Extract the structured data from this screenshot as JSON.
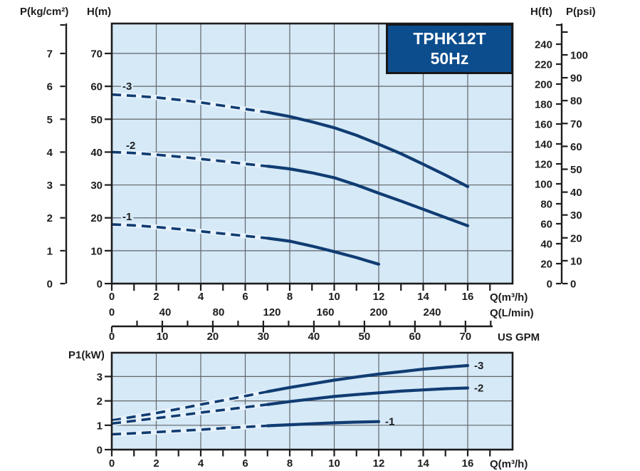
{
  "title_box": {
    "model": "TPHK12T",
    "frequency": "50Hz"
  },
  "colors": {
    "plot_bg": "#d5e9f7",
    "grid": "#63666a",
    "curve": "#103c72",
    "halo": "#e7f2fb",
    "axis": "#1d1d1f",
    "text": "#1d1d1f",
    "title_bg": "#0c4d8d",
    "title_text": "#ffffff"
  },
  "chart_data": [
    {
      "id": "head_chart",
      "type": "line",
      "title": "TPHK12T 50Hz",
      "xlabel": "Q(m³/h)",
      "ylabel": "H(m)",
      "xlim": [
        0,
        18
      ],
      "ylim": [
        0,
        79
      ],
      "grid": true,
      "legend_position": "on-curve",
      "x_major_ticks": [
        0,
        2,
        4,
        6,
        8,
        10,
        12,
        14,
        16
      ],
      "x_minor_tick_step": 1,
      "y_ticks": [
        0,
        10,
        20,
        30,
        40,
        50,
        60,
        70
      ],
      "left_axis_pressure_kgcm2": {
        "label": "P(kg/cm²)",
        "ticks": [
          0,
          1,
          2,
          3,
          4,
          5,
          6,
          7
        ]
      },
      "right_axis_head_ft": {
        "label": "H(ft)",
        "ticks": [
          0,
          20,
          40,
          60,
          80,
          100,
          120,
          140,
          160,
          180,
          200,
          220,
          240
        ]
      },
      "right_axis_pressure_psi": {
        "label": "P(psi)",
        "ticks": [
          0,
          10,
          20,
          30,
          40,
          50,
          60,
          70,
          80,
          90,
          100
        ]
      },
      "x_scale_lmin": {
        "label": "Q(L/min)",
        "ticks": [
          0,
          40,
          80,
          120,
          160,
          200,
          240
        ]
      },
      "x_scale_usgpm": {
        "label": "US GPM",
        "ticks": [
          0,
          10,
          20,
          30,
          40,
          50,
          60,
          70
        ],
        "minor_step": 5
      },
      "series": [
        {
          "name": "-3",
          "style": "dashed-then-solid",
          "dashed_until_x": 7,
          "points": [
            [
              0,
              57.5
            ],
            [
              1,
              57.1
            ],
            [
              2,
              56.6
            ],
            [
              3,
              55.9
            ],
            [
              4,
              55.1
            ],
            [
              5,
              54.1
            ],
            [
              6,
              53.1
            ],
            [
              7,
              52.1
            ],
            [
              8,
              50.8
            ],
            [
              9,
              49.2
            ],
            [
              10,
              47.4
            ],
            [
              11,
              45.1
            ],
            [
              12,
              42.4
            ],
            [
              13,
              39.5
            ],
            [
              14,
              36.3
            ],
            [
              15,
              33.0
            ],
            [
              16,
              29.5
            ]
          ]
        },
        {
          "name": "-2",
          "style": "dashed-then-solid",
          "dashed_until_x": 7,
          "points": [
            [
              0,
              40.0
            ],
            [
              1,
              39.7
            ],
            [
              2,
              39.2
            ],
            [
              3,
              38.6
            ],
            [
              4,
              37.9
            ],
            [
              5,
              37.2
            ],
            [
              6,
              36.4
            ],
            [
              7,
              35.7
            ],
            [
              8,
              34.9
            ],
            [
              9,
              33.7
            ],
            [
              10,
              32.2
            ],
            [
              11,
              30.0
            ],
            [
              12,
              27.5
            ],
            [
              13,
              25.1
            ],
            [
              14,
              22.6
            ],
            [
              15,
              20.1
            ],
            [
              16,
              17.6
            ]
          ]
        },
        {
          "name": "-1",
          "style": "dashed-then-solid",
          "dashed_until_x": 7,
          "points": [
            [
              0,
              18.0
            ],
            [
              1,
              17.7
            ],
            [
              2,
              17.2
            ],
            [
              3,
              16.6
            ],
            [
              4,
              15.9
            ],
            [
              5,
              15.2
            ],
            [
              6,
              14.5
            ],
            [
              7,
              13.8
            ],
            [
              8,
              12.9
            ],
            [
              9,
              11.4
            ],
            [
              10,
              9.7
            ],
            [
              11,
              7.9
            ],
            [
              12,
              5.9
            ]
          ]
        }
      ]
    },
    {
      "id": "power_chart",
      "type": "line",
      "xlabel": "Q(m³/h)",
      "ylabel": "P1(kW)",
      "xlim": [
        0,
        18
      ],
      "ylim": [
        0,
        3.95
      ],
      "grid": true,
      "legend_position": "on-curve",
      "x_major_ticks": [
        0,
        2,
        4,
        6,
        8,
        10,
        12,
        14,
        16
      ],
      "x_minor_tick_step": 1,
      "y_ticks": [
        0,
        1,
        2,
        3
      ],
      "series": [
        {
          "name": "-3",
          "style": "dashed-then-solid",
          "dashed_until_x": 7,
          "points": [
            [
              0,
              1.2
            ],
            [
              1,
              1.35
            ],
            [
              2,
              1.5
            ],
            [
              3,
              1.67
            ],
            [
              4,
              1.85
            ],
            [
              5,
              2.02
            ],
            [
              6,
              2.2
            ],
            [
              7,
              2.38
            ],
            [
              8,
              2.55
            ],
            [
              9,
              2.7
            ],
            [
              10,
              2.85
            ],
            [
              11,
              2.98
            ],
            [
              12,
              3.1
            ],
            [
              13,
              3.2
            ],
            [
              14,
              3.3
            ],
            [
              15,
              3.38
            ],
            [
              16,
              3.45
            ]
          ]
        },
        {
          "name": "-2",
          "style": "dashed-then-solid",
          "dashed_until_x": 7,
          "points": [
            [
              0,
              1.07
            ],
            [
              1,
              1.18
            ],
            [
              2,
              1.29
            ],
            [
              3,
              1.4
            ],
            [
              4,
              1.52
            ],
            [
              5,
              1.63
            ],
            [
              6,
              1.74
            ],
            [
              7,
              1.85
            ],
            [
              8,
              1.97
            ],
            [
              9,
              2.08
            ],
            [
              10,
              2.18
            ],
            [
              11,
              2.26
            ],
            [
              12,
              2.33
            ],
            [
              13,
              2.4
            ],
            [
              14,
              2.45
            ],
            [
              15,
              2.5
            ],
            [
              16,
              2.53
            ]
          ]
        },
        {
          "name": "-1",
          "style": "dashed-then-solid",
          "dashed_until_x": 7,
          "points": [
            [
              0,
              0.63
            ],
            [
              1,
              0.67
            ],
            [
              2,
              0.72
            ],
            [
              3,
              0.77
            ],
            [
              4,
              0.82
            ],
            [
              5,
              0.88
            ],
            [
              6,
              0.93
            ],
            [
              7,
              0.98
            ],
            [
              8,
              1.02
            ],
            [
              9,
              1.06
            ],
            [
              10,
              1.1
            ],
            [
              11,
              1.13
            ],
            [
              12,
              1.15
            ]
          ]
        }
      ]
    }
  ]
}
